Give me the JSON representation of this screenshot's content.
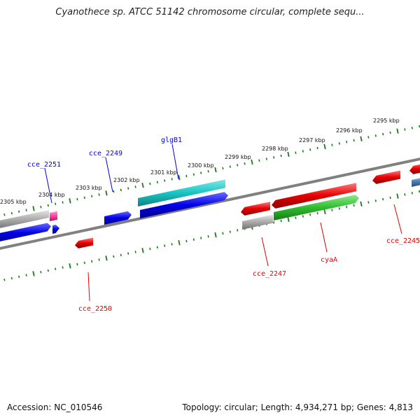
{
  "title": "Cyanothece sp. ATCC 51142 chromosome circular, complete sequ...",
  "footer": {
    "accession": "Accession: NC_010546",
    "stats": "Topology: circular; Length: 4,934,271 bp; Genes: 4,813"
  },
  "colors": {
    "blue": "#0000e6",
    "cyan": "#19c4c4",
    "red": "#e60000",
    "green": "#2ebd2e",
    "gray": "#aaaaaa",
    "pink": "#ff3fa0",
    "steel": "#4a7ab0",
    "tick": "#1a7a1a",
    "axis": "#808080"
  },
  "ticks": [
    "2305 kbp",
    "2304 kbp",
    "2303 kbp",
    "2302 kbp",
    "2301 kbp",
    "2300 kbp",
    "2299 kbp",
    "2298 kbp",
    "2297 kbp",
    "2296 kbp",
    "2295 kbp"
  ],
  "gene_labels": [
    {
      "text": "cce_2251",
      "color": "blue"
    },
    {
      "text": "cce_2249",
      "color": "blue"
    },
    {
      "text": "glgB1",
      "color": "blue"
    },
    {
      "text": "cce_2250",
      "color": "red"
    },
    {
      "text": "cce_2247",
      "color": "red"
    },
    {
      "text": "cyaA",
      "color": "red"
    },
    {
      "text": "cce_2245",
      "color": "red"
    }
  ]
}
